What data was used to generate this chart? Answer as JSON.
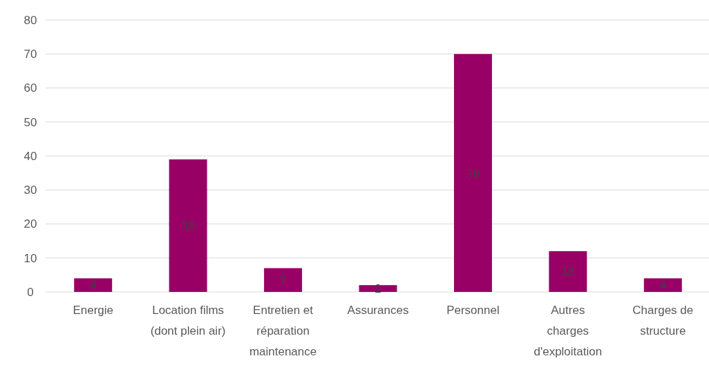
{
  "chart_data": {
    "type": "bar",
    "categories": [
      "Energie",
      "Location films (dont plein air)",
      "Entretien et réparation maintenance",
      "Assurances",
      "Personnel",
      "Autres charges d'exploitation",
      "Charges de structure"
    ],
    "values": [
      4,
      39,
      7,
      2,
      70,
      12,
      4
    ],
    "color": "#990066",
    "ylim": [
      0,
      80
    ],
    "yticks": [
      0,
      10,
      20,
      30,
      40,
      50,
      60,
      70,
      80
    ],
    "grid": "y",
    "data_labels": true
  }
}
